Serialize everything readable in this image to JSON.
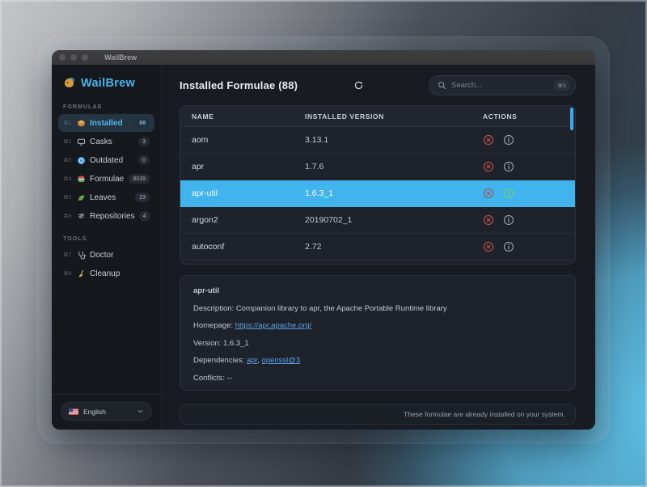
{
  "window": {
    "title": "WailBrew"
  },
  "sidebar": {
    "app_name": "WailBrew",
    "sections": [
      {
        "label": "FORMULAE",
        "items": [
          {
            "shortcut": "⌘1",
            "icon": "installed-icon",
            "label": "Installed",
            "badge": "88",
            "selected": true
          },
          {
            "shortcut": "⌘2",
            "icon": "casks-icon",
            "label": "Casks",
            "badge": "3"
          },
          {
            "shortcut": "⌘3",
            "icon": "outdated-icon",
            "label": "Outdated",
            "badge": "0"
          },
          {
            "shortcut": "⌘4",
            "icon": "formulae-icon",
            "label": "Formulae",
            "badge": "8039"
          },
          {
            "shortcut": "⌘5",
            "icon": "leaves-icon",
            "label": "Leaves",
            "badge": "23"
          },
          {
            "shortcut": "⌘6",
            "icon": "repositories-icon",
            "label": "Repositories",
            "badge": "4"
          }
        ]
      },
      {
        "label": "TOOLS",
        "items": [
          {
            "shortcut": "⌘7",
            "icon": "doctor-icon",
            "label": "Doctor"
          },
          {
            "shortcut": "⌘8",
            "icon": "cleanup-icon",
            "label": "Cleanup"
          }
        ]
      }
    ],
    "language": {
      "value": "English",
      "flag": "us-flag-icon"
    }
  },
  "header": {
    "title": "Installed Formulae (88)",
    "search_placeholder": "Search...",
    "search_shortcut": "⌘S"
  },
  "table": {
    "columns": [
      "NAME",
      "INSTALLED VERSION",
      "ACTIONS"
    ],
    "rows": [
      {
        "name": "aom",
        "version": "3.13.1"
      },
      {
        "name": "apr",
        "version": "1.7.6"
      },
      {
        "name": "apr-util",
        "version": "1.6.3_1",
        "selected": true
      },
      {
        "name": "argon2",
        "version": "20190702_1"
      },
      {
        "name": "autoconf",
        "version": "2.72"
      }
    ]
  },
  "details": {
    "name": "apr-util",
    "description_label": "Description: ",
    "description": "Companion library to apr, the Apache Portable Runtime library",
    "homepage_label": "Homepage: ",
    "homepage": "https://apr.apache.org/",
    "version_label": "Version: ",
    "version": "1.6.3_1",
    "dependencies_label": "Dependencies: ",
    "dependencies": [
      "apr",
      "openssl@3"
    ],
    "dependencies_separator": ", ",
    "conflicts_label": "Conflicts: ",
    "conflicts": "--"
  },
  "footer": {
    "message": "These formulae are already installed on your system."
  },
  "colors": {
    "accent": "#41b4ee",
    "sidebar_active_text": "#4db6ec",
    "link": "#58a0e6",
    "danger": "#c0504d",
    "success": "#7ecb6c",
    "scrollbar": "#3fa9ec"
  }
}
